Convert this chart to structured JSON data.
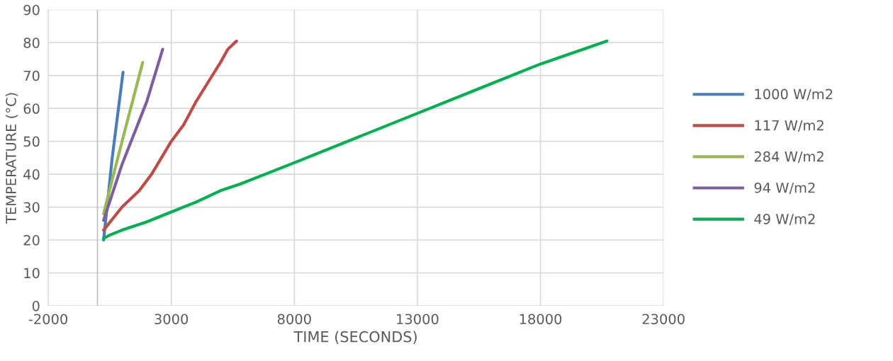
{
  "chart_data": {
    "type": "line",
    "xlabel": "TIME (SECONDS)",
    "ylabel": "TEMPERATURE (°C)",
    "xlim": [
      -2000,
      23000
    ],
    "xticks": [
      -2000,
      3000,
      8000,
      13000,
      18000,
      23000
    ],
    "ylim": [
      0,
      90
    ],
    "yticks": [
      0,
      10,
      20,
      30,
      40,
      50,
      60,
      70,
      80,
      90
    ],
    "grid": true,
    "legend": "right",
    "marker": "none",
    "line_style": "solid",
    "ref_lines": [
      {
        "axis": "x",
        "value": 0,
        "color": "#bfbfbf"
      }
    ],
    "series": [
      {
        "name": "1000 W/m2",
        "color": "#4a7ebb",
        "x": [
          250,
          600,
          1040
        ],
        "values": [
          20,
          45,
          71
        ]
      },
      {
        "name": "117 W/m2",
        "color": "#be4b48",
        "x": [
          250,
          1000,
          1700,
          2200,
          3000,
          3500,
          4000,
          4500,
          5000,
          5300,
          5650
        ],
        "values": [
          23,
          30,
          35,
          40,
          50,
          55,
          62,
          68,
          74,
          78,
          80.5
        ]
      },
      {
        "name": "284 W/m2",
        "color": "#98b954",
        "x": [
          250,
          1000,
          1840
        ],
        "values": [
          28,
          50,
          74
        ]
      },
      {
        "name": "94 W/m2",
        "color": "#7d5fa0",
        "x": [
          250,
          1000,
          2000,
          2650
        ],
        "values": [
          26,
          43,
          62,
          78
        ]
      },
      {
        "name": "49 W/m2",
        "color": "#00b050",
        "x": [
          250,
          500,
          1000,
          2000,
          3000,
          4000,
          5000,
          5800,
          8000,
          10500,
          13000,
          15500,
          18000,
          20700
        ],
        "values": [
          20.5,
          21.5,
          23,
          25.5,
          28.5,
          31.5,
          35,
          37,
          43.5,
          51,
          58.5,
          66,
          73.5,
          80.5
        ]
      }
    ]
  }
}
